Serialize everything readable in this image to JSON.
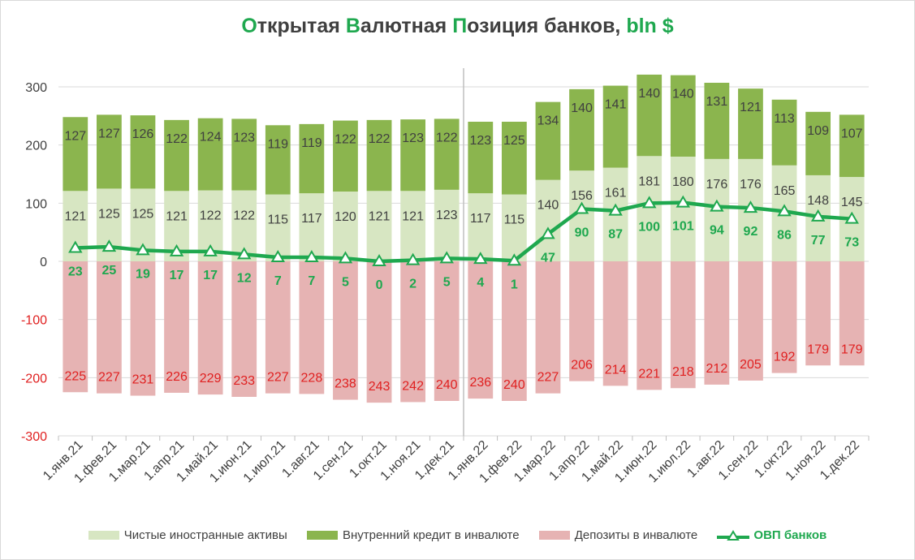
{
  "title_parts": [
    {
      "text": "О",
      "green": true
    },
    {
      "text": "ткрытая ",
      "green": false
    },
    {
      "text": "В",
      "green": true
    },
    {
      "text": "алютная ",
      "green": false
    },
    {
      "text": "П",
      "green": true
    },
    {
      "text": "озиция банков, ",
      "green": false
    },
    {
      "text": "bln $",
      "green": true
    }
  ],
  "colors": {
    "net_foreign_assets": "#d7e6c2",
    "domestic_credit": "#8bb54e",
    "deposits": "#e6b3b3",
    "ovp_line": "#1fa84f",
    "gridline": "#d9d9d9",
    "separator": "#bfbfbf"
  },
  "chart_data": {
    "type": "bar",
    "stacked": true,
    "title": "Открытая Валютная Позиция банков, bln $",
    "categories": [
      "1.янв.21",
      "1.фев.21",
      "1.мар.21",
      "1.апр.21",
      "1.май.21",
      "1.июн.21",
      "1.июл.21",
      "1.авг.21",
      "1.сен.21",
      "1.окт.21",
      "1.ноя.21",
      "1.дек.21",
      "1.янв.22",
      "1.фев.22",
      "1.мар.22",
      "1.апр.22",
      "1.май.22",
      "1.июн.22",
      "1.июл.22",
      "1.авг.22",
      "1.сен.22",
      "1.окт.22",
      "1.ноя.22",
      "1.дек.22"
    ],
    "series": [
      {
        "name": "Чистые иностранные активы",
        "type": "bar",
        "values": [
          121,
          125,
          125,
          121,
          122,
          122,
          115,
          117,
          120,
          121,
          121,
          123,
          117,
          115,
          140,
          156,
          161,
          181,
          180,
          176,
          176,
          165,
          148,
          145
        ]
      },
      {
        "name": "Внутренний кредит в инвалюте",
        "type": "bar",
        "values": [
          127,
          127,
          126,
          122,
          124,
          123,
          119,
          119,
          122,
          122,
          123,
          122,
          123,
          125,
          134,
          140,
          141,
          140,
          140,
          131,
          121,
          113,
          109,
          107
        ]
      },
      {
        "name": "Депозиты в инвалюте",
        "type": "bar",
        "values": [
          -225,
          -227,
          -231,
          -226,
          -229,
          -233,
          -227,
          -228,
          -238,
          -243,
          -242,
          -240,
          -236,
          -240,
          -227,
          -206,
          -214,
          -221,
          -218,
          -212,
          -205,
          -192,
          -179,
          -179
        ]
      },
      {
        "name": "ОВП банков",
        "type": "line",
        "values": [
          23,
          25,
          19,
          17,
          17,
          12,
          7,
          7,
          5,
          0,
          2,
          5,
          4,
          1,
          47,
          90,
          87,
          100,
          101,
          94,
          92,
          86,
          77,
          73
        ]
      }
    ],
    "deposit_labels": [
      "225",
      "227",
      "231",
      "226",
      "229",
      "233",
      "227",
      "228",
      "238",
      "243",
      "242",
      "240",
      "236",
      "240",
      "227",
      "206",
      "214",
      "221",
      "218",
      "212",
      "205",
      "192",
      "179",
      "179"
    ],
    "ylim": [
      -300,
      300
    ],
    "yticks": [
      -300,
      -200,
      -100,
      0,
      100,
      200,
      300
    ],
    "grid": true,
    "legend_position": "bottom"
  }
}
